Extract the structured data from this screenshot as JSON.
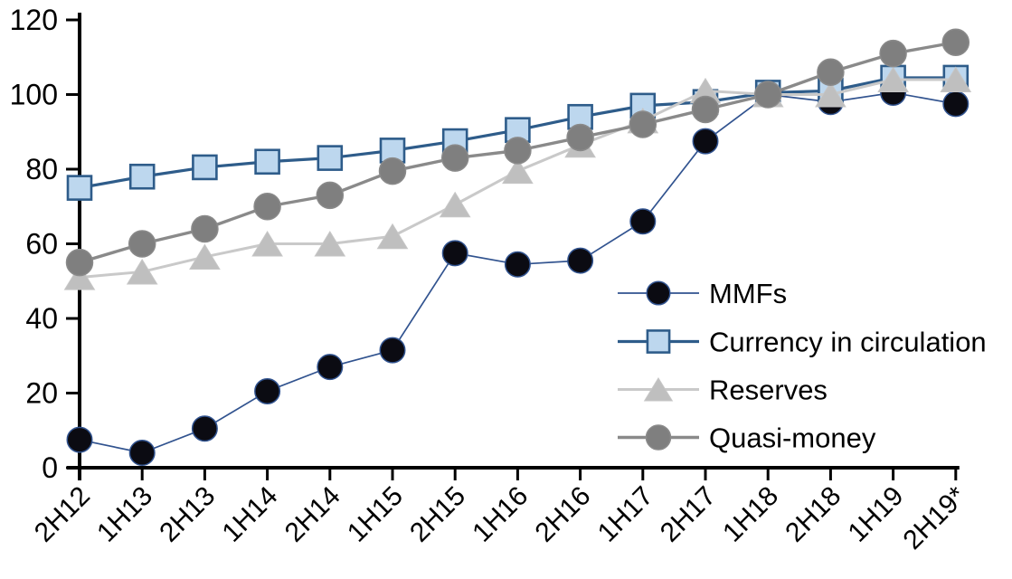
{
  "chart_data": {
    "type": "line",
    "title": "",
    "xlabel": "",
    "ylabel": "",
    "categories": [
      "2H12",
      "1H13",
      "2H13",
      "1H14",
      "2H14",
      "1H15",
      "2H15",
      "1H16",
      "2H16",
      "1H17",
      "2H17",
      "1H18",
      "2H18",
      "1H19",
      "2H19*"
    ],
    "series": [
      {
        "name": "MMFs",
        "marker": "circle",
        "line_color": "#31538f",
        "fill_color": "#0b0b12",
        "marker_stroke": "#31538f",
        "line_width": 1.7,
        "marker_size": 27.5,
        "values": [
          7.5,
          4,
          10.5,
          20.5,
          27,
          31.5,
          57.5,
          54.5,
          55.5,
          66,
          87.5,
          100,
          98,
          100.5,
          97.5
        ]
      },
      {
        "name": "Currency in circulation",
        "marker": "square",
        "line_color": "#2e5c8a",
        "fill_color": "#bdd7ee",
        "marker_stroke": "#2e5c8a",
        "line_width": 3.2,
        "marker_size": 26,
        "values": [
          75,
          78,
          80.5,
          82,
          83,
          85,
          87.5,
          90.5,
          94,
          97,
          98,
          100.5,
          101,
          104.5,
          104.5
        ]
      },
      {
        "name": "Reserves",
        "marker": "triangle",
        "line_color": "#c9c9c9",
        "fill_color": "#bfbfbf",
        "marker_stroke": "#c6c6c6",
        "line_width": 3,
        "marker_size": 27,
        "values": [
          51,
          52.5,
          56.5,
          60,
          60,
          62,
          70.5,
          79.5,
          86.5,
          93,
          101,
          100,
          100,
          104,
          104
        ]
      },
      {
        "name": "Quasi-money",
        "marker": "circle",
        "line_color": "#8a8a8a",
        "fill_color": "#7f7f7f",
        "marker_stroke": "#8a8a8a",
        "line_width": 3.4,
        "marker_size": 29,
        "values": [
          55,
          60,
          64,
          70,
          73,
          79.5,
          83,
          85,
          88.5,
          92,
          96,
          100,
          106,
          111,
          114
        ]
      }
    ],
    "ylim": [
      0,
      120
    ],
    "yticks": [
      0,
      20,
      40,
      60,
      80,
      100,
      120
    ],
    "x_tick_label_rotation": -45,
    "grid": false,
    "legend_position": "inside-right",
    "axis_color": "#000000",
    "background_color": "#ffffff"
  }
}
